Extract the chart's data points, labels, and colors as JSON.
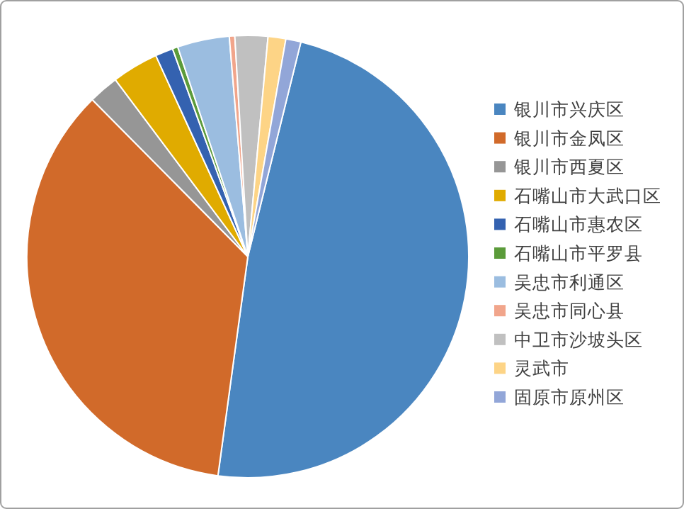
{
  "chart_data": {
    "type": "pie",
    "categories": [
      "银川市兴庆区",
      "银川市金凤区",
      "银川市西夏区",
      "石嘴山市大武口区",
      "石嘴山市惠农区",
      "石嘴山市平罗县",
      "吴忠市利通区",
      "吴忠市同心县",
      "中卫市沙坡头区",
      "灵武市",
      "固原市原州区"
    ],
    "values": [
      48.3,
      35.4,
      2.2,
      3.4,
      1.3,
      0.4,
      3.8,
      0.4,
      2.4,
      1.3,
      1.1
    ],
    "colors": [
      "#4a86c0",
      "#d16a2a",
      "#969696",
      "#e0ab00",
      "#3462b0",
      "#5b9b3a",
      "#9bbde0",
      "#f1a58b",
      "#c0c0c0",
      "#fdd486",
      "#92a6d8"
    ],
    "legend": "right"
  }
}
